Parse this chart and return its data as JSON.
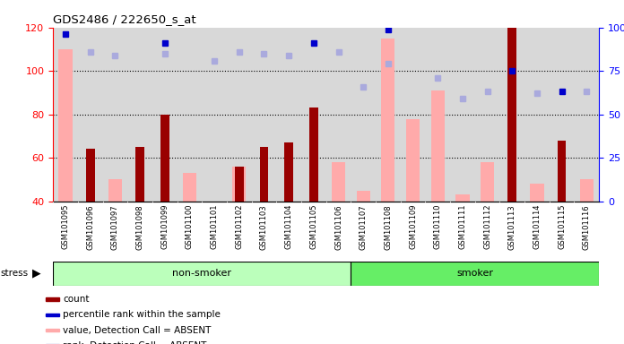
{
  "title": "GDS2486 / 222650_s_at",
  "samples": [
    "GSM101095",
    "GSM101096",
    "GSM101097",
    "GSM101098",
    "GSM101099",
    "GSM101100",
    "GSM101101",
    "GSM101102",
    "GSM101103",
    "GSM101104",
    "GSM101105",
    "GSM101106",
    "GSM101107",
    "GSM101108",
    "GSM101109",
    "GSM101110",
    "GSM101111",
    "GSM101112",
    "GSM101113",
    "GSM101114",
    "GSM101115",
    "GSM101116"
  ],
  "count": [
    null,
    64,
    null,
    65,
    80,
    null,
    null,
    56,
    65,
    67,
    83,
    null,
    null,
    null,
    null,
    null,
    null,
    null,
    120,
    null,
    68,
    null
  ],
  "percentile_rank": [
    96,
    null,
    null,
    null,
    91,
    null,
    null,
    null,
    null,
    null,
    91,
    null,
    null,
    99,
    null,
    null,
    null,
    null,
    75,
    null,
    63,
    null
  ],
  "value_absent": [
    110,
    null,
    50,
    null,
    null,
    53,
    null,
    56,
    null,
    null,
    null,
    58,
    45,
    115,
    78,
    91,
    43,
    58,
    null,
    48,
    null,
    50
  ],
  "rank_absent": [
    null,
    86,
    84,
    null,
    85,
    null,
    81,
    86,
    85,
    84,
    null,
    86,
    66,
    79,
    null,
    71,
    59,
    63,
    null,
    62,
    null,
    63
  ],
  "non_smoker_count": 12,
  "smoker_count": 10,
  "ylim_left": [
    40,
    120
  ],
  "ylim_right": [
    0,
    100
  ],
  "yticks_left": [
    40,
    60,
    80,
    100,
    120
  ],
  "yticks_right": [
    0,
    25,
    50,
    75,
    100
  ],
  "yticklabels_right": [
    "0",
    "25",
    "50",
    "75",
    "100%"
  ],
  "bg_color": "#d8d8d8",
  "non_smoker_color": "#bbffbb",
  "smoker_color": "#66ee66",
  "bar_color_count": "#990000",
  "bar_color_absent": "#ffaaaa",
  "dot_color_rank": "#0000cc",
  "dot_color_rank_absent": "#aaaadd",
  "legend_items": [
    {
      "label": "count",
      "color": "#990000"
    },
    {
      "label": "percentile rank within the sample",
      "color": "#0000cc"
    },
    {
      "label": "value, Detection Call = ABSENT",
      "color": "#ffaaaa"
    },
    {
      "label": "rank, Detection Call = ABSENT",
      "color": "#aaaadd"
    }
  ]
}
